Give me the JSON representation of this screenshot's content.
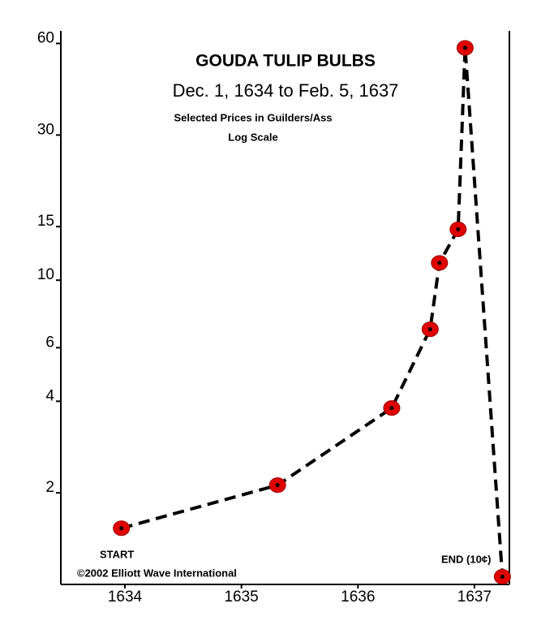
{
  "chart_data": {
    "type": "line",
    "title": "GOUDA TULIP BULBS",
    "subtitle": "Dec. 1, 1634 to Feb. 5, 1637",
    "note": "Selected Prices in Guilders/Ass",
    "scale_label": "Log Scale",
    "start_label": "START",
    "end_label": "END (10¢)",
    "copyright": "©2002 Elliott Wave International",
    "log_scale": true,
    "grid": false,
    "x": [
      1633.97,
      1635.31,
      1636.29,
      1636.62,
      1636.7,
      1636.86,
      1636.92,
      1637.24
    ],
    "series": [
      {
        "name": "Price",
        "color": "#000000",
        "marker_color": "#e00000",
        "values": [
          1.53,
          2.12,
          3.8,
          6.9,
          11.4,
          14.7,
          58,
          1.06
        ]
      }
    ],
    "xlim": [
      1633.45,
      1637.3
    ],
    "xticks": [
      1634,
      1635,
      1636,
      1637
    ],
    "ylim": [
      1,
      66
    ],
    "yticks": [
      2,
      4,
      6,
      10,
      15,
      30,
      60
    ]
  }
}
